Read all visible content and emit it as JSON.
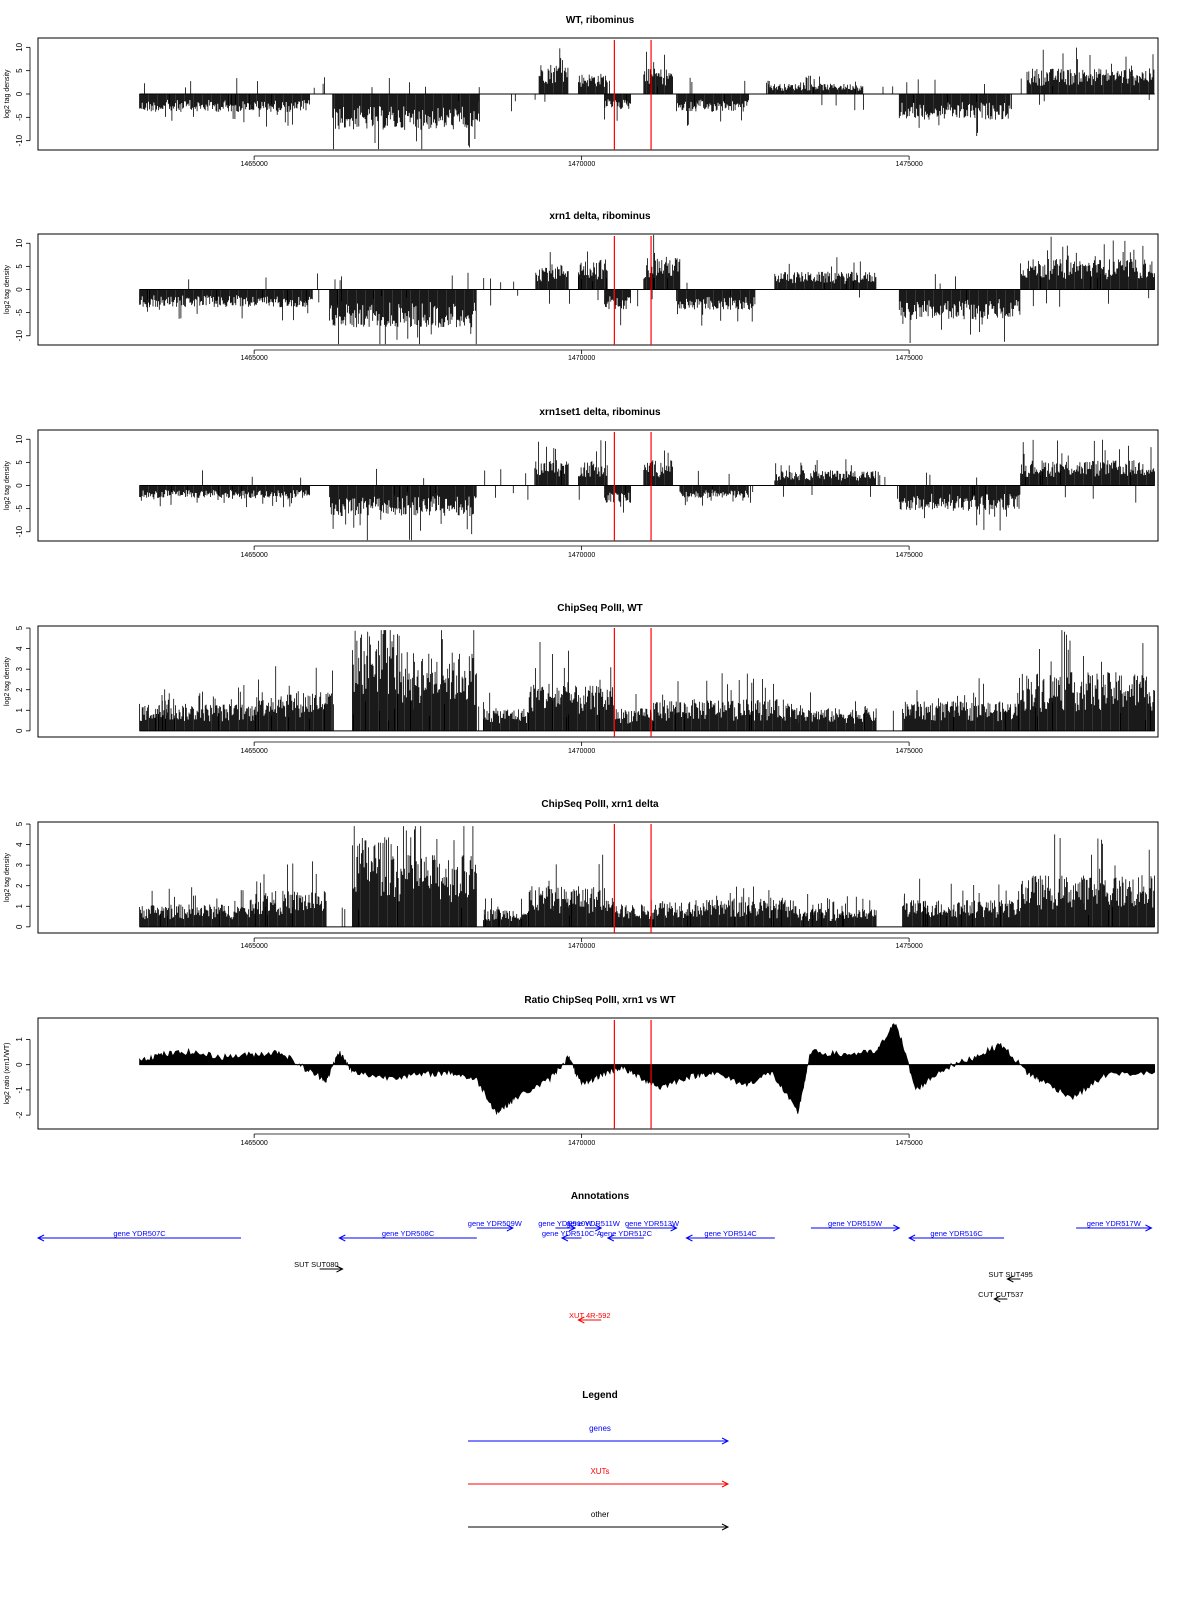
{
  "figure": {
    "x_axis": {
      "range": [
        1461700,
        1478800
      ],
      "ticks": [
        1465000,
        1470000,
        1475000
      ],
      "tick_labels": [
        "1465000",
        "1470000",
        "1475000"
      ]
    },
    "marker_lines": {
      "color": "#ff0000",
      "x": [
        1470500,
        1471060
      ]
    }
  },
  "chart_data": [
    {
      "type": "bar",
      "title": "WT, ribominus",
      "ylabel": "log2 tag density",
      "ylim": [
        -12,
        12
      ],
      "yticks": [
        -10,
        -5,
        0,
        5,
        10
      ],
      "ytick_labels": [
        "-10",
        "-5",
        "0",
        "5",
        "10"
      ],
      "segments": [
        {
          "x": [
            1463250,
            1465850
          ],
          "sign": -1,
          "level": 3.5
        },
        {
          "x": [
            1466200,
            1468450
          ],
          "sign": -1,
          "level": 7
        },
        {
          "x": [
            1469350,
            1469800
          ],
          "sign": 1,
          "level": 6
        },
        {
          "x": [
            1469950,
            1470400
          ],
          "sign": 1,
          "level": 4
        },
        {
          "x": [
            1470350,
            1470750
          ],
          "sign": -1,
          "level": 3
        },
        {
          "x": [
            1470950,
            1471400
          ],
          "sign": 1,
          "level": 5
        },
        {
          "x": [
            1471450,
            1472550
          ],
          "sign": -1,
          "level": 3.5
        },
        {
          "x": [
            1472850,
            1474300
          ],
          "sign": 1,
          "level": 2
        },
        {
          "x": [
            1474850,
            1476550
          ],
          "sign": -1,
          "level": 5
        },
        {
          "x": [
            1476800,
            1478750
          ],
          "sign": 1,
          "level": 5
        }
      ]
    },
    {
      "type": "bar",
      "title": "xrn1 delta, ribominus",
      "ylabel": "log2 tag density",
      "ylim": [
        -12,
        12
      ],
      "yticks": [
        -10,
        -5,
        0,
        5,
        10
      ],
      "ytick_labels": [
        "-10",
        "-5",
        "0",
        "5",
        "10"
      ],
      "segments": [
        {
          "x": [
            1463250,
            1465900
          ],
          "sign": -1,
          "level": 3.5
        },
        {
          "x": [
            1466150,
            1468400
          ],
          "sign": -1,
          "level": 7.5
        },
        {
          "x": [
            1469300,
            1469800
          ],
          "sign": 1,
          "level": 5
        },
        {
          "x": [
            1469950,
            1470400
          ],
          "sign": 1,
          "level": 6
        },
        {
          "x": [
            1470350,
            1470750
          ],
          "sign": -1,
          "level": 4
        },
        {
          "x": [
            1470950,
            1471500
          ],
          "sign": 1,
          "level": 6.5
        },
        {
          "x": [
            1471450,
            1472650
          ],
          "sign": -1,
          "level": 4
        },
        {
          "x": [
            1472950,
            1474500
          ],
          "sign": 1,
          "level": 3.5
        },
        {
          "x": [
            1474850,
            1476700
          ],
          "sign": -1,
          "level": 6
        },
        {
          "x": [
            1476700,
            1478750
          ],
          "sign": 1,
          "level": 6
        }
      ]
    },
    {
      "type": "bar",
      "title": "xrn1set1 delta, ribominus",
      "ylabel": "log2 tag density",
      "ylim": [
        -12,
        12
      ],
      "yticks": [
        -10,
        -5,
        0,
        5,
        10
      ],
      "ytick_labels": [
        "-10",
        "-5",
        "0",
        "5",
        "10"
      ],
      "segments": [
        {
          "x": [
            1463250,
            1465850
          ],
          "sign": -1,
          "level": 2.5
        },
        {
          "x": [
            1466150,
            1468400
          ],
          "sign": -1,
          "level": 6
        },
        {
          "x": [
            1469300,
            1469800
          ],
          "sign": 1,
          "level": 5
        },
        {
          "x": [
            1469950,
            1470400
          ],
          "sign": 1,
          "level": 5
        },
        {
          "x": [
            1470350,
            1470750
          ],
          "sign": -1,
          "level": 3.5
        },
        {
          "x": [
            1470950,
            1471400
          ],
          "sign": 1,
          "level": 5
        },
        {
          "x": [
            1471500,
            1472550
          ],
          "sign": -1,
          "level": 2.5
        },
        {
          "x": [
            1472950,
            1474500
          ],
          "sign": 1,
          "level": 3
        },
        {
          "x": [
            1474850,
            1476700
          ],
          "sign": -1,
          "level": 5
        },
        {
          "x": [
            1476700,
            1478750
          ],
          "sign": 1,
          "level": 5
        }
      ]
    },
    {
      "type": "bar",
      "title": "ChipSeq PolII, WT",
      "ylabel": "log2 tag density",
      "ylim": [
        -0.3,
        5.1
      ],
      "yticks": [
        0,
        1,
        2,
        3,
        4,
        5
      ],
      "ytick_labels": [
        "0",
        "1",
        "2",
        "3",
        "4",
        "5"
      ],
      "segments": [
        {
          "x": [
            1463250,
            1465000
          ],
          "sign": 1,
          "level": 1.2
        },
        {
          "x": [
            1465000,
            1466200
          ],
          "sign": 1,
          "level": 1.8
        },
        {
          "x": [
            1466500,
            1467200
          ],
          "sign": 1,
          "level": 4.5
        },
        {
          "x": [
            1467200,
            1468400
          ],
          "sign": 1,
          "level": 3.5
        },
        {
          "x": [
            1468500,
            1469200
          ],
          "sign": 1,
          "level": 1
        },
        {
          "x": [
            1469200,
            1469800
          ],
          "sign": 1,
          "level": 2.2
        },
        {
          "x": [
            1469800,
            1470500
          ],
          "sign": 1,
          "level": 2
        },
        {
          "x": [
            1470500,
            1471100
          ],
          "sign": 1,
          "level": 1
        },
        {
          "x": [
            1471100,
            1473300
          ],
          "sign": 1,
          "level": 1.4
        },
        {
          "x": [
            1473300,
            1474500
          ],
          "sign": 1,
          "level": 1
        },
        {
          "x": [
            1474900,
            1476700
          ],
          "sign": 1,
          "level": 1.3
        },
        {
          "x": [
            1476700,
            1478750
          ],
          "sign": 1,
          "level": 2.6
        }
      ]
    },
    {
      "type": "bar",
      "title": "ChipSeq PolII, xrn1 delta",
      "ylabel": "log2 tag density",
      "ylim": [
        -0.3,
        5.1
      ],
      "yticks": [
        0,
        1,
        2,
        3,
        4,
        5
      ],
      "ytick_labels": [
        "0",
        "1",
        "2",
        "3",
        "4",
        "5"
      ],
      "segments": [
        {
          "x": [
            1463250,
            1465000
          ],
          "sign": 1,
          "level": 1
        },
        {
          "x": [
            1465000,
            1466100
          ],
          "sign": 1,
          "level": 1.6
        },
        {
          "x": [
            1466500,
            1467200
          ],
          "sign": 1,
          "level": 4
        },
        {
          "x": [
            1467200,
            1468400
          ],
          "sign": 1,
          "level": 3.2
        },
        {
          "x": [
            1468500,
            1469200
          ],
          "sign": 1,
          "level": 0.8
        },
        {
          "x": [
            1469200,
            1469800
          ],
          "sign": 1,
          "level": 1.8
        },
        {
          "x": [
            1469800,
            1470500
          ],
          "sign": 1,
          "level": 1.8
        },
        {
          "x": [
            1470500,
            1471100
          ],
          "sign": 1,
          "level": 1
        },
        {
          "x": [
            1471100,
            1473300
          ],
          "sign": 1,
          "level": 1.2
        },
        {
          "x": [
            1473300,
            1474500
          ],
          "sign": 1,
          "level": 0.8
        },
        {
          "x": [
            1474900,
            1476700
          ],
          "sign": 1,
          "level": 1.2
        },
        {
          "x": [
            1476700,
            1478750
          ],
          "sign": 1,
          "level": 2.3
        }
      ]
    },
    {
      "type": "area",
      "title": "Ratio ChipSeq PolII, xrn1 vs WT",
      "ylabel": "log2 ratio (xrn1/WT)",
      "ylim": [
        -2.55,
        1.85
      ],
      "yticks": [
        -2,
        -1,
        0,
        1
      ],
      "ytick_labels": [
        "-2",
        "-1",
        "0",
        "1"
      ],
      "x": [
        1463250,
        1463600,
        1464000,
        1464500,
        1465000,
        1465400,
        1465800,
        1466100,
        1466300,
        1466500,
        1467000,
        1467500,
        1468000,
        1468400,
        1468700,
        1469000,
        1469500,
        1469800,
        1470000,
        1470300,
        1470600,
        1470900,
        1471200,
        1471600,
        1472000,
        1472500,
        1472900,
        1473300,
        1473500,
        1474000,
        1474500,
        1474800,
        1475100,
        1475500,
        1476000,
        1476400,
        1476800,
        1477000,
        1477500,
        1478000,
        1478750
      ],
      "y": [
        0.2,
        0.4,
        0.5,
        0.3,
        0.4,
        0.5,
        -0.2,
        -0.6,
        0.5,
        -0.3,
        -0.5,
        -0.4,
        -0.3,
        -0.6,
        -1.9,
        -1.3,
        -0.6,
        0.3,
        -0.8,
        -0.4,
        -0.1,
        -0.5,
        -0.9,
        -0.5,
        -0.3,
        -0.8,
        -0.3,
        -1.9,
        0.5,
        0.4,
        0.5,
        1.7,
        -1.0,
        -0.2,
        0.3,
        0.8,
        -0.3,
        -0.6,
        -1.3,
        -0.4,
        -0.3
      ]
    }
  ],
  "annotations": {
    "title": "Annotations",
    "items": [
      {
        "label": "gene YDR507C",
        "color": "#0000ff",
        "x1": 1461700,
        "x2": 1464800,
        "dir": -1,
        "row": 1
      },
      {
        "label": "gene YDR508C",
        "color": "#0000ff",
        "x1": 1466300,
        "x2": 1468400,
        "dir": -1,
        "row": 1
      },
      {
        "label": "gene YDR509W",
        "color": "#0000ff",
        "x1": 1468400,
        "x2": 1468950,
        "dir": 1,
        "row": 0
      },
      {
        "label": "gene YDR510W",
        "color": "#0000ff",
        "x1": 1469600,
        "x2": 1469900,
        "dir": 1,
        "row": 0
      },
      {
        "label": "gene YDR511W",
        "color": "#0000ff",
        "x1": 1470050,
        "x2": 1470300,
        "dir": 1,
        "row": 0
      },
      {
        "label": "gene YDR513W",
        "color": "#0000ff",
        "x1": 1470700,
        "x2": 1471450,
        "dir": 1,
        "row": 0
      },
      {
        "label": "gene YDR510C-A",
        "color": "#0000ff",
        "x1": 1469700,
        "x2": 1470000,
        "dir": -1,
        "row": 1
      },
      {
        "label": "gene YDR512C",
        "color": "#0000ff",
        "x1": 1470400,
        "x2": 1470950,
        "dir": -1,
        "row": 1
      },
      {
        "label": "gene YDR514C",
        "color": "#0000ff",
        "x1": 1471600,
        "x2": 1472950,
        "dir": -1,
        "row": 1
      },
      {
        "label": "gene YDR515W",
        "color": "#0000ff",
        "x1": 1473500,
        "x2": 1474850,
        "dir": 1,
        "row": 0
      },
      {
        "label": "gene YDR516C",
        "color": "#0000ff",
        "x1": 1475000,
        "x2": 1476450,
        "dir": -1,
        "row": 1
      },
      {
        "label": "gene YDR517W",
        "color": "#0000ff",
        "x1": 1477550,
        "x2": 1478700,
        "dir": 1,
        "row": 0
      },
      {
        "label": "SUT SUT080",
        "color": "#000000",
        "x1": 1466000,
        "x2": 1466350,
        "dir": 1,
        "row": 2
      },
      {
        "label": "SUT SUT495",
        "color": "#000000",
        "x1": 1476500,
        "x2": 1476700,
        "dir": -1,
        "row": 3
      },
      {
        "label": "CUT CUT537",
        "color": "#000000",
        "x1": 1476300,
        "x2": 1476500,
        "dir": -1,
        "row": 4
      },
      {
        "label": "XUT 4R-592",
        "color": "#ff0000",
        "x1": 1469950,
        "x2": 1470300,
        "dir": -1,
        "row": 5
      }
    ]
  },
  "legend": {
    "title": "Legend",
    "items": [
      {
        "label": "genes",
        "color": "#0000ff"
      },
      {
        "label": "XUTs",
        "color": "#ff0000"
      },
      {
        "label": "other",
        "color": "#000000"
      }
    ]
  }
}
